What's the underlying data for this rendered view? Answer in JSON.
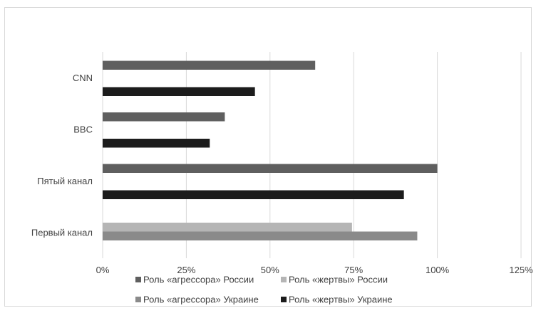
{
  "chart_data": {
    "type": "bar",
    "orientation": "horizontal",
    "categories": [
      "CNN",
      "BBC",
      "Пятый канал",
      "Первый канал"
    ],
    "series": [
      {
        "name": "Роль «агрессора» России",
        "color": "#5f5f5f",
        "values": [
          63.5,
          36.5,
          100,
          null
        ]
      },
      {
        "name": "Роль «жертвы» России",
        "color": "#b5b5b5",
        "values": [
          null,
          null,
          null,
          74.5
        ]
      },
      {
        "name": "Роль «агрессора» Украине",
        "color": "#8a8a8a",
        "values": [
          null,
          null,
          null,
          94
        ]
      },
      {
        "name": "Роль «жертвы» Украине",
        "color": "#1c1c1c",
        "values": [
          45.5,
          32,
          90,
          null
        ]
      }
    ],
    "xlim": [
      0,
      125
    ],
    "xticks": [
      0,
      25,
      50,
      75,
      100,
      125
    ],
    "xtick_labels": [
      "0%",
      "25%",
      "50%",
      "75%",
      "100%",
      "125%"
    ],
    "grid": true,
    "legend_placement": "bottom",
    "legend": [
      [
        "Роль «агрессора» России",
        "Роль «жертвы» России"
      ],
      [
        "Роль «агрессора» Украине",
        "Роль «жертвы» Украине"
      ]
    ]
  }
}
